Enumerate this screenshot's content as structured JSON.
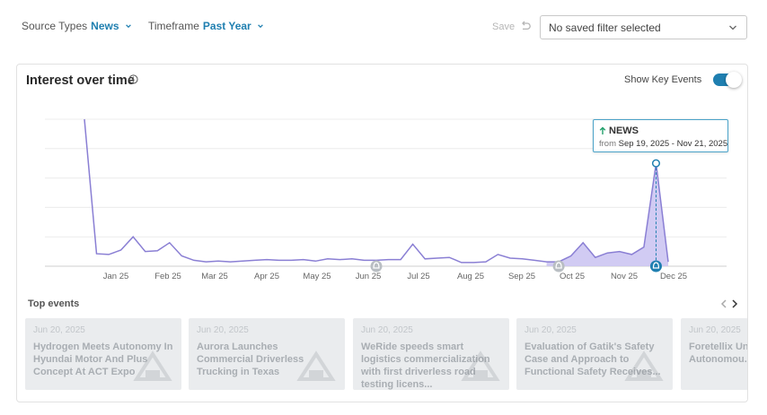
{
  "filters": {
    "source_types_label": "Source Types",
    "source_types_value": "News",
    "timeframe_label": "Timeframe",
    "timeframe_value": "Past Year",
    "save_label": "Save",
    "saved_filter_placeholder": "No saved filter selected"
  },
  "card": {
    "title": "Interest over time",
    "toggle_label": "Show Key Events",
    "toggle_on": true
  },
  "chart_data": {
    "type": "area",
    "title": "",
    "xlabel": "",
    "ylabel": "",
    "x_tick_labels": [
      "Jan 25",
      "Feb 25",
      "Mar 25",
      "Apr 25",
      "May 25",
      "Jun 25",
      "Jul 25",
      "Aug 25",
      "Sep 25",
      "Oct 25",
      "Nov 25",
      "Dec 25"
    ],
    "ylim": [
      0,
      100
    ],
    "grid": true,
    "series": [
      {
        "values": [
          100,
          8.5,
          8,
          11,
          20,
          10,
          10.5,
          16,
          7,
          4,
          3,
          3.5,
          3,
          3.5,
          4,
          4.5,
          4,
          4,
          4.5,
          3.5,
          5,
          4.5,
          5,
          4,
          4,
          4.5,
          4.5,
          15,
          5,
          5.5,
          6,
          2.5,
          2.5,
          3,
          8,
          5.5,
          5,
          4,
          3,
          3,
          7,
          16,
          6,
          9,
          10,
          8,
          13,
          70,
          3
        ]
      }
    ],
    "highlight": {
      "title": "NEWS",
      "from_label": "from",
      "range": "Sep 19, 2025 - Nov 21, 2025",
      "shaded_start_index": 38,
      "shaded_end_index": 48,
      "peak_index": 47
    },
    "key_event_markers_at_index": [
      24,
      39,
      47
    ],
    "colors": {
      "line": "#8a7fd4",
      "area": "#c9c2f1",
      "marker": "#1f7fb0",
      "event_marker": "#b9bec3"
    }
  },
  "events": {
    "title": "Top events",
    "items": [
      {
        "date": "Jun 20, 2025",
        "headline": "Hydrogen Meets Autonomy In Hyundai Motor And Plus Concept At ACT Expo"
      },
      {
        "date": "Jun 20, 2025",
        "headline": "Aurora Launches Commercial Driverless Trucking in Texas"
      },
      {
        "date": "Jun 20, 2025",
        "headline": "WeRide speeds smart logistics commercialization with first driverless road testing licens..."
      },
      {
        "date": "Jun 20, 2025",
        "headline": "Evaluation of Gatik's Safety Case and Approach to Functional Safety Receives..."
      },
      {
        "date": "Jun 20, 2025",
        "headline": "Foretellix Un... Platform To... Autonomou..."
      }
    ]
  }
}
